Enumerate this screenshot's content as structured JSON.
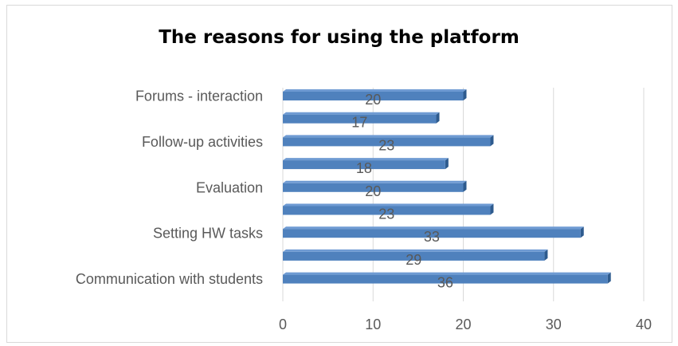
{
  "chart_data": {
    "type": "bar",
    "orientation": "horizontal",
    "title": "The reasons for using the platform",
    "xlabel": "",
    "ylabel": "",
    "xlim": [
      0,
      40
    ],
    "x_ticks": [
      "0",
      "10",
      "20",
      "30",
      "40"
    ],
    "grid": true,
    "legend": "none",
    "categories": [
      "Communication with students",
      "",
      "Setting HW tasks",
      "",
      "Evaluation",
      "",
      "Follow-up activities",
      "",
      "Forums - interaction"
    ],
    "values": [
      36,
      29,
      33,
      23,
      20,
      18,
      23,
      17,
      20
    ],
    "data_labels": [
      "36",
      "29",
      "33",
      "23",
      "20",
      "18",
      "23",
      "17",
      "20"
    ],
    "colors": {
      "bar": "#4f81bd",
      "bar_top": "#6f9bd3",
      "bar_side": "#2e5b8e",
      "grid": "#d9d9d9",
      "text": "#595959"
    }
  }
}
